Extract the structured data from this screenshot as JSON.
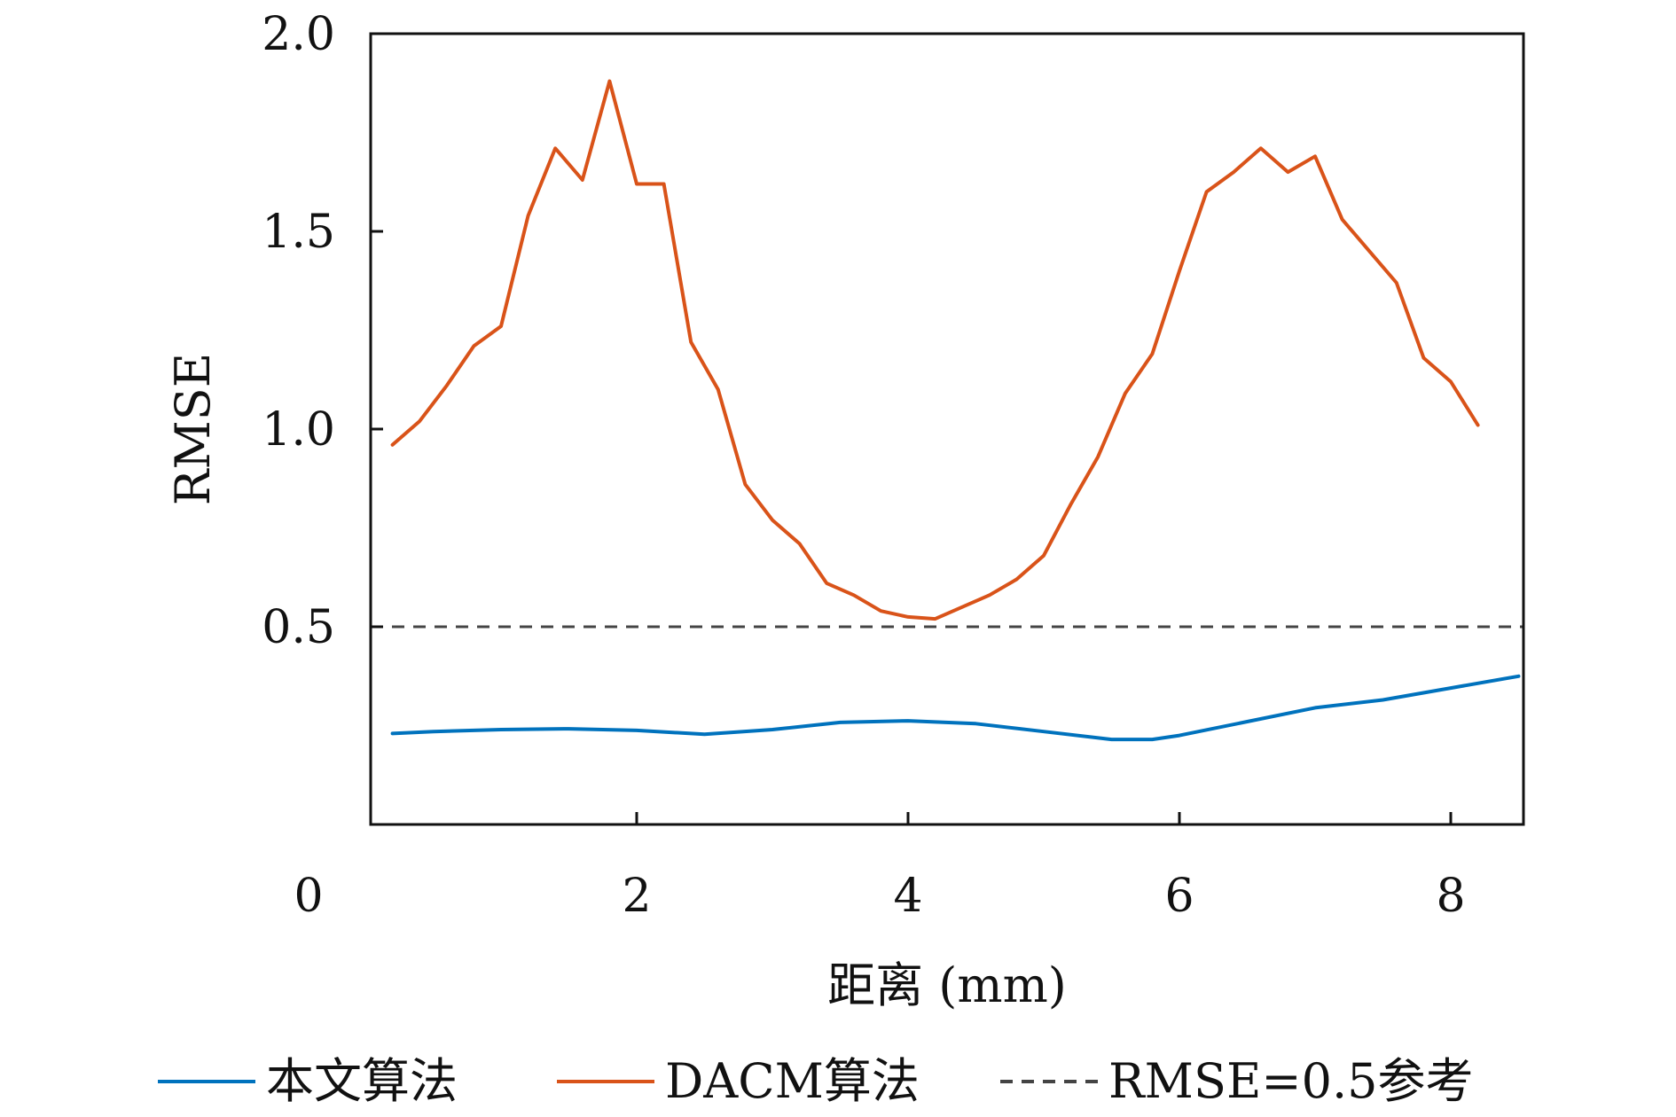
{
  "chart_data": {
    "type": "line",
    "title": "",
    "xlabel": "距离 (mm)",
    "ylabel": "RMSE",
    "xlim": [
      0,
      8.5
    ],
    "ylim": [
      0,
      2.0
    ],
    "x_ticks": [
      0,
      2,
      4,
      6,
      8
    ],
    "x_tick_labels": [
      "0",
      "2",
      "4",
      "6",
      "8"
    ],
    "y_ticks": [
      0.5,
      1.0,
      1.5,
      2.0
    ],
    "y_tick_labels": [
      "0.5",
      "1.0",
      "1.5",
      "2.0"
    ],
    "grid": false,
    "legend_position": "bottom",
    "series": [
      {
        "name": "本文算法",
        "color": "#0072BD",
        "style": "solid",
        "points": [
          [
            0.2,
            0.23
          ],
          [
            0.5,
            0.235
          ],
          [
            1.0,
            0.24
          ],
          [
            1.5,
            0.242
          ],
          [
            2.0,
            0.238
          ],
          [
            2.5,
            0.228
          ],
          [
            3.0,
            0.24
          ],
          [
            3.5,
            0.258
          ],
          [
            4.0,
            0.262
          ],
          [
            4.5,
            0.255
          ],
          [
            5.0,
            0.235
          ],
          [
            5.5,
            0.215
          ],
          [
            5.8,
            0.215
          ],
          [
            6.0,
            0.225
          ],
          [
            6.5,
            0.26
          ],
          [
            7.0,
            0.295
          ],
          [
            7.5,
            0.315
          ],
          [
            8.0,
            0.345
          ],
          [
            8.5,
            0.375
          ]
        ]
      },
      {
        "name": "DACM算法",
        "color": "#D95319",
        "style": "solid",
        "points": [
          [
            0.2,
            0.96
          ],
          [
            0.4,
            1.02
          ],
          [
            0.6,
            1.11
          ],
          [
            0.8,
            1.21
          ],
          [
            1.0,
            1.26
          ],
          [
            1.2,
            1.54
          ],
          [
            1.4,
            1.71
          ],
          [
            1.6,
            1.63
          ],
          [
            1.8,
            1.88
          ],
          [
            2.0,
            1.62
          ],
          [
            2.2,
            1.62
          ],
          [
            2.4,
            1.22
          ],
          [
            2.6,
            1.1
          ],
          [
            2.8,
            0.86
          ],
          [
            3.0,
            0.77
          ],
          [
            3.2,
            0.71
          ],
          [
            3.4,
            0.61
          ],
          [
            3.6,
            0.58
          ],
          [
            3.8,
            0.54
          ],
          [
            4.0,
            0.525
          ],
          [
            4.2,
            0.52
          ],
          [
            4.4,
            0.55
          ],
          [
            4.6,
            0.58
          ],
          [
            4.8,
            0.62
          ],
          [
            5.0,
            0.68
          ],
          [
            5.2,
            0.81
          ],
          [
            5.4,
            0.93
          ],
          [
            5.6,
            1.09
          ],
          [
            5.8,
            1.19
          ],
          [
            6.0,
            1.4
          ],
          [
            6.2,
            1.6
          ],
          [
            6.4,
            1.65
          ],
          [
            6.6,
            1.71
          ],
          [
            6.8,
            1.65
          ],
          [
            7.0,
            1.69
          ],
          [
            7.2,
            1.53
          ],
          [
            7.4,
            1.45
          ],
          [
            7.6,
            1.37
          ],
          [
            7.8,
            1.18
          ],
          [
            8.0,
            1.12
          ],
          [
            8.2,
            1.01
          ]
        ]
      },
      {
        "name": "RMSE=0.5参考",
        "color": "#444444",
        "style": "dashed",
        "points": [
          [
            0,
            0.5
          ],
          [
            8.5,
            0.5
          ]
        ]
      }
    ]
  }
}
